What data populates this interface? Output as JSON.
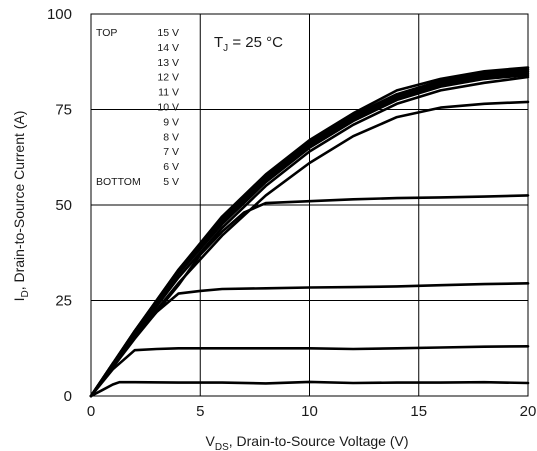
{
  "chart_data": {
    "type": "line",
    "xlabel": {
      "main": "V",
      "sub": "DS",
      "rest": ", Drain-to-Source Voltage (V)"
    },
    "ylabel": {
      "main": "I",
      "sub": "D",
      "rest": ", Drain-to-Source Current (A)"
    },
    "xlim": [
      0,
      20
    ],
    "ylim": [
      0,
      100
    ],
    "xticks": [
      0,
      5,
      10,
      15,
      20
    ],
    "yticks": [
      0,
      25,
      50,
      75,
      100
    ],
    "xtick_labels": [
      "0",
      "5",
      "10",
      "15",
      "20"
    ],
    "ytick_labels": [
      "0",
      "25",
      "50",
      "75",
      "100"
    ],
    "grid": true,
    "annotation": {
      "main": "T",
      "sub": "J",
      "rest": " = 25 °C"
    },
    "legend": {
      "top_label": "TOP",
      "bottom_label": "BOTTOM",
      "entries": [
        "15 V",
        "14 V",
        "13 V",
        "12 V",
        "11 V",
        "10 V",
        "9 V",
        "8 V",
        "7 V",
        "6 V",
        "5 V"
      ]
    },
    "series": [
      {
        "x": [
          0,
          2,
          4,
          6,
          8,
          10,
          12,
          14,
          16,
          18,
          20
        ],
        "y": [
          0,
          17,
          33,
          47,
          58,
          67,
          74,
          80,
          83,
          85,
          86
        ]
      },
      {
        "x": [
          0,
          2,
          4,
          6,
          8,
          10,
          12,
          14,
          16,
          18,
          20
        ],
        "y": [
          0,
          17,
          33,
          46.5,
          57.5,
          66.5,
          73.5,
          79,
          82.5,
          84.5,
          85.5
        ]
      },
      {
        "x": [
          0,
          2,
          4,
          6,
          8,
          10,
          12,
          14,
          16,
          18,
          20
        ],
        "y": [
          0,
          17,
          32.5,
          46,
          57,
          66,
          73,
          78.5,
          82,
          84,
          85
        ]
      },
      {
        "x": [
          0,
          2,
          4,
          6,
          8,
          10,
          12,
          14,
          16,
          18,
          20
        ],
        "y": [
          0,
          16.5,
          32,
          45.5,
          56.5,
          65.5,
          72.5,
          78,
          81.5,
          83.5,
          84.5
        ]
      },
      {
        "x": [
          0,
          2,
          4,
          6,
          8,
          10,
          12,
          14,
          16,
          18,
          20
        ],
        "y": [
          0,
          16.5,
          32,
          45,
          56,
          65,
          72,
          77.5,
          81,
          83,
          84
        ]
      },
      {
        "x": [
          0,
          2,
          4,
          6,
          8,
          10,
          12,
          14,
          16,
          18,
          20
        ],
        "y": [
          0,
          16,
          31,
          44,
          55,
          64,
          71,
          76.5,
          80,
          82,
          83.5
        ]
      },
      {
        "x": [
          0,
          2,
          4,
          6,
          8,
          10,
          12,
          14,
          16,
          18,
          20
        ],
        "y": [
          0,
          15.5,
          29.5,
          42,
          52.5,
          61,
          68,
          73,
          75.5,
          76.5,
          77
        ]
      },
      {
        "x": [
          0,
          2,
          4,
          5,
          6,
          7,
          8,
          10,
          12,
          14,
          16,
          18,
          20
        ],
        "y": [
          0,
          15,
          29,
          37,
          43,
          48,
          50.5,
          51,
          51.5,
          51.8,
          52,
          52.2,
          52.5
        ]
      },
      {
        "x": [
          0,
          1,
          2,
          3,
          4,
          5,
          6,
          8,
          10,
          12,
          14,
          16,
          18,
          20
        ],
        "y": [
          0,
          8.5,
          15.5,
          22,
          26.8,
          27.5,
          28,
          28.2,
          28.4,
          28.5,
          28.7,
          29,
          29.3,
          29.5
        ]
      },
      {
        "x": [
          0,
          1,
          2,
          3,
          4,
          6,
          8,
          10,
          12,
          14,
          16,
          18,
          20
        ],
        "y": [
          0,
          7,
          12,
          12.3,
          12.5,
          12.5,
          12.5,
          12.5,
          12.3,
          12.5,
          12.7,
          12.9,
          13
        ]
      },
      {
        "x": [
          0,
          0.5,
          1,
          1.3,
          2,
          4,
          6,
          8,
          10,
          12,
          14,
          16,
          18,
          20
        ],
        "y": [
          0,
          1.5,
          3,
          3.6,
          3.6,
          3.5,
          3.5,
          3.3,
          3.7,
          3.4,
          3.5,
          3.5,
          3.6,
          3.4
        ]
      }
    ]
  }
}
